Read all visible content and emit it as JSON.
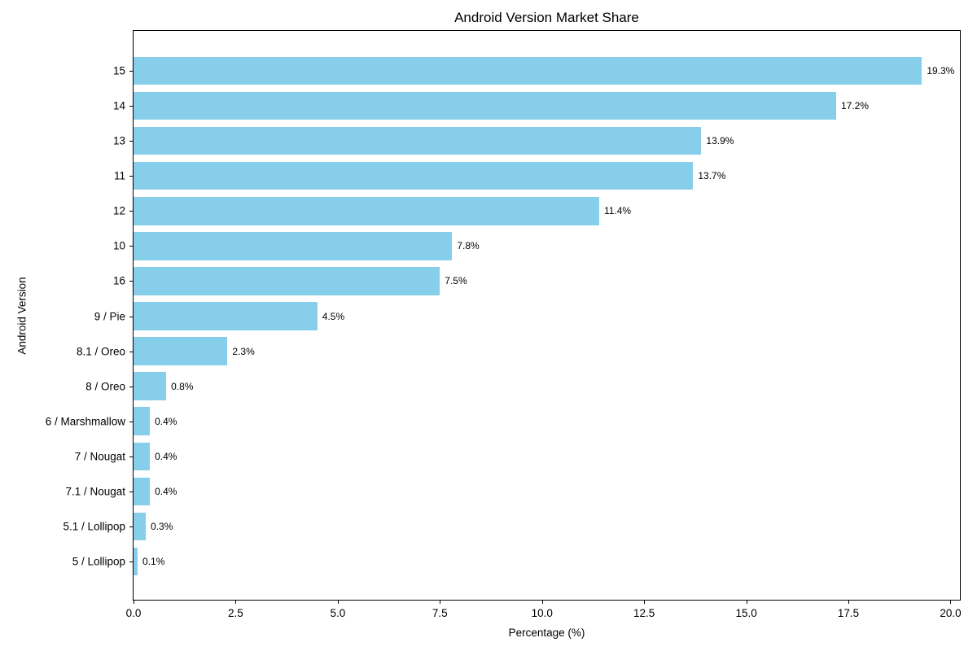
{
  "chart_data": {
    "type": "bar",
    "orientation": "horizontal",
    "title": "Android Version Market Share",
    "xlabel": "Percentage (%)",
    "ylabel": "Android Version",
    "categories": [
      "15",
      "14",
      "13",
      "11",
      "12",
      "10",
      "16",
      "9 / Pie",
      "8.1 / Oreo",
      "8 / Oreo",
      "6 / Marshmallow",
      "7 / Nougat",
      "7.1 / Nougat",
      "5.1 / Lollipop",
      "5 / Lollipop"
    ],
    "values": [
      19.3,
      17.2,
      13.9,
      13.7,
      11.4,
      7.8,
      7.5,
      4.5,
      2.3,
      0.8,
      0.4,
      0.4,
      0.4,
      0.3,
      0.1
    ],
    "value_labels": [
      "19.3%",
      "17.2%",
      "13.9%",
      "13.7%",
      "11.4%",
      "7.8%",
      "7.5%",
      "4.5%",
      "2.3%",
      "0.8%",
      "0.4%",
      "0.4%",
      "0.4%",
      "0.3%",
      "0.1%"
    ],
    "xlim": [
      0,
      20.27
    ],
    "xticks": [
      0.0,
      2.5,
      5.0,
      7.5,
      10.0,
      12.5,
      15.0,
      17.5,
      20.0
    ],
    "xtick_labels": [
      "0.0",
      "2.5",
      "5.0",
      "7.5",
      "10.0",
      "12.5",
      "15.0",
      "17.5",
      "20.0"
    ],
    "bar_color": "#87CEEB",
    "text_color": "#000000",
    "background_color": "#ffffff",
    "grid": false,
    "legend": null
  }
}
